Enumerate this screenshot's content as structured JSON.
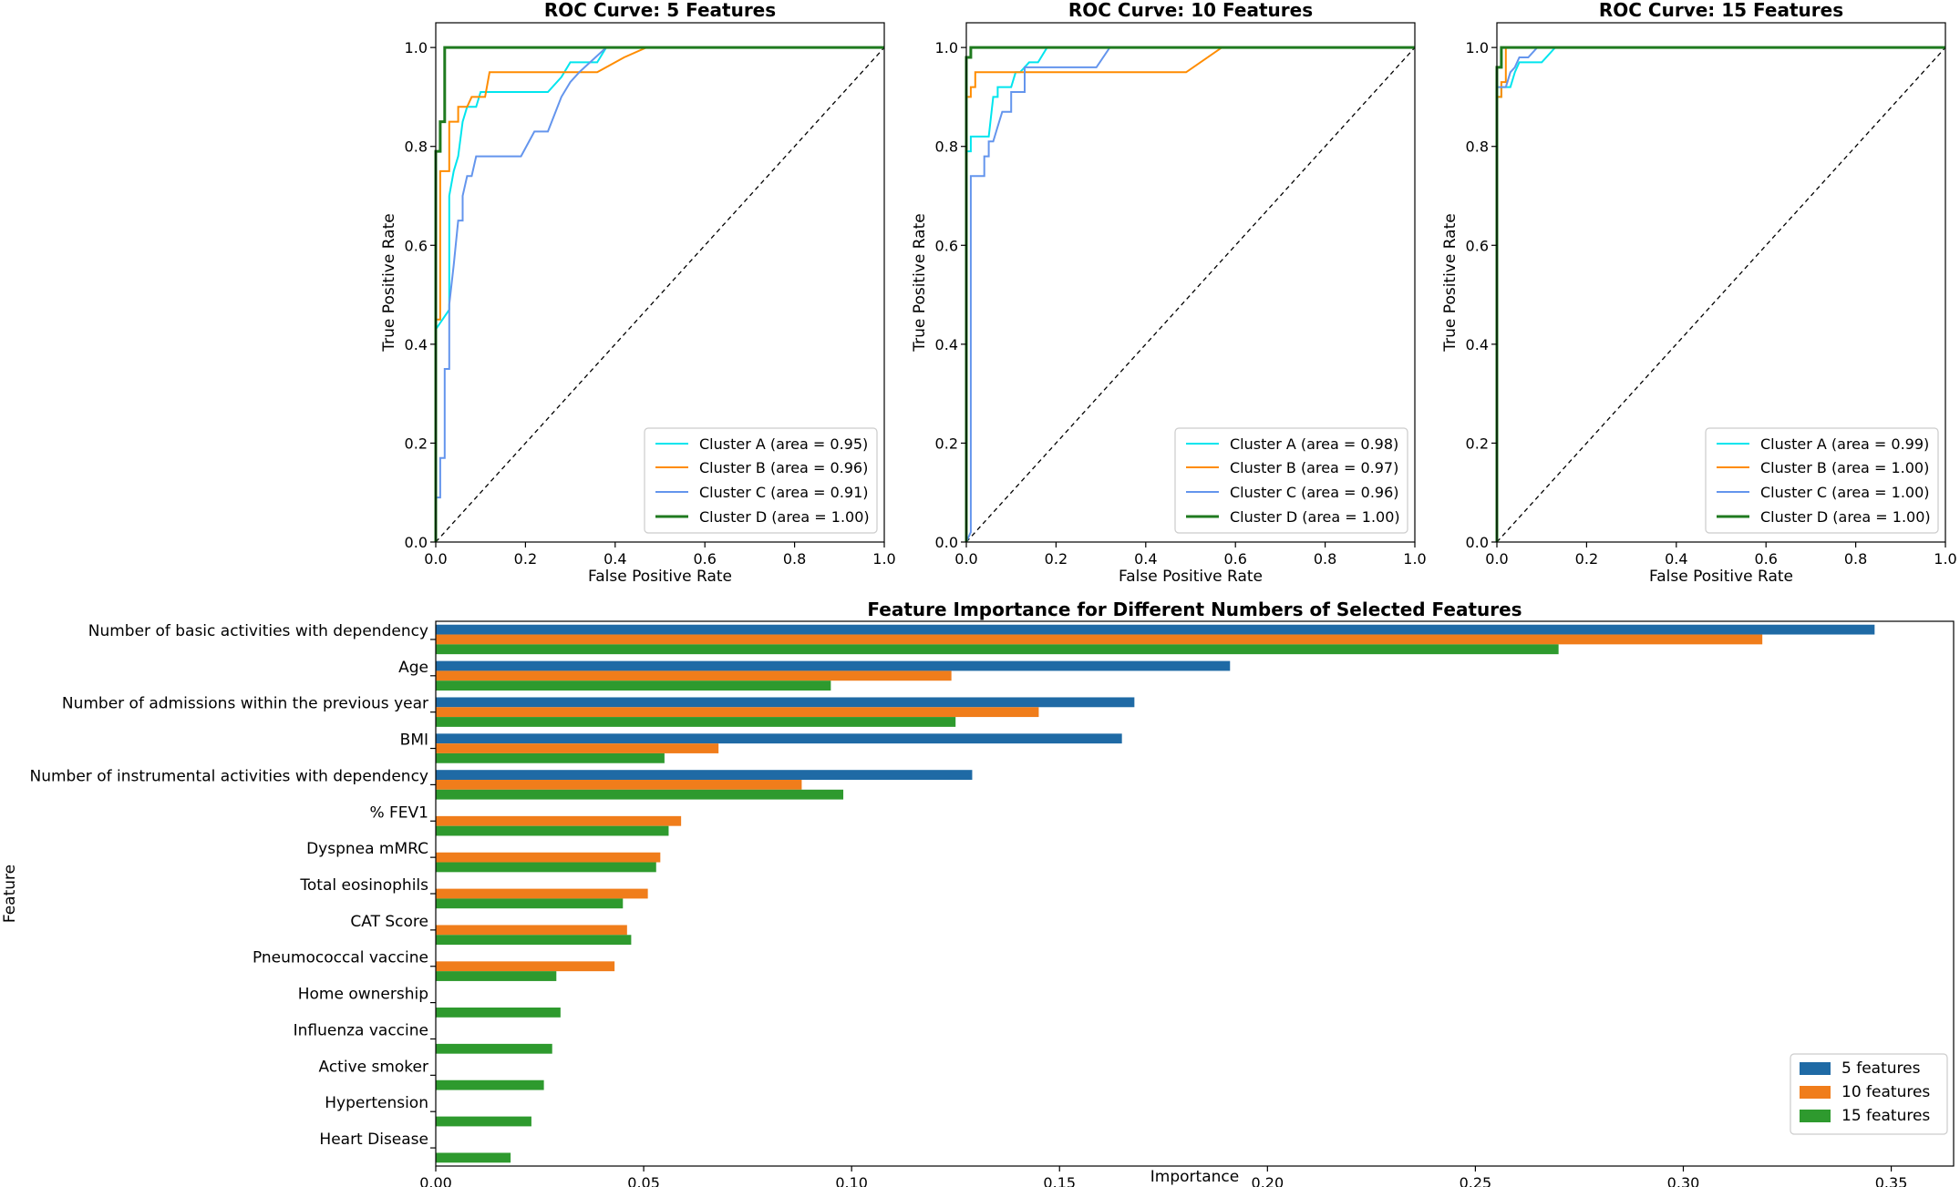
{
  "chart_data": [
    {
      "type": "line",
      "title": "ROC Curve: 5 Features",
      "xlabel": "False Positive Rate",
      "ylabel": "True Positive Rate",
      "xlim": [
        0,
        1
      ],
      "ylim": [
        0,
        1.05
      ],
      "xticks": [
        "0.0",
        "0.2",
        "0.4",
        "0.6",
        "0.8",
        "1.0"
      ],
      "yticks": [
        "0.0",
        "0.2",
        "0.4",
        "0.6",
        "0.8",
        "1.0"
      ],
      "legend_position": "lower-right",
      "grid": false,
      "series": [
        {
          "name": "Cluster A (area = 0.95)",
          "color": "#00e5ee",
          "x": [
            0,
            0,
            0.03,
            0.03,
            0.04,
            0.05,
            0.06,
            0.07,
            0.09,
            0.1,
            0.12,
            0.25,
            0.28,
            0.3,
            0.36,
            0.38,
            1
          ],
          "y": [
            0.4,
            0.43,
            0.47,
            0.7,
            0.75,
            0.78,
            0.85,
            0.88,
            0.88,
            0.91,
            0.91,
            0.91,
            0.94,
            0.97,
            0.97,
            1.0,
            1.0
          ]
        },
        {
          "name": "Cluster B (area = 0.96)",
          "color": "#ff8c00",
          "x": [
            0,
            0,
            0.01,
            0.01,
            0.03,
            0.03,
            0.05,
            0.05,
            0.07,
            0.08,
            0.11,
            0.12,
            0.27,
            0.36,
            0.42,
            0.47,
            1
          ],
          "y": [
            0.0,
            0.45,
            0.45,
            0.75,
            0.75,
            0.85,
            0.85,
            0.88,
            0.88,
            0.9,
            0.9,
            0.95,
            0.95,
            0.95,
            0.98,
            1.0,
            1.0
          ]
        },
        {
          "name": "Cluster C (area = 0.91)",
          "color": "#6495ed",
          "x": [
            0,
            0.01,
            0.01,
            0.02,
            0.02,
            0.03,
            0.03,
            0.04,
            0.05,
            0.06,
            0.06,
            0.07,
            0.08,
            0.09,
            0.1,
            0.19,
            0.22,
            0.25,
            0.28,
            0.3,
            0.32,
            0.38,
            0.4,
            1
          ],
          "y": [
            0.09,
            0.09,
            0.17,
            0.17,
            0.35,
            0.35,
            0.48,
            0.56,
            0.65,
            0.65,
            0.7,
            0.74,
            0.74,
            0.78,
            0.78,
            0.78,
            0.83,
            0.83,
            0.9,
            0.93,
            0.95,
            1.0,
            1.0,
            1.0
          ]
        },
        {
          "name": "Cluster D (area = 1.00)",
          "color": "#1f7a1f",
          "x": [
            0,
            0,
            0.01,
            0.01,
            0.02,
            0.02,
            1
          ],
          "y": [
            0.0,
            0.79,
            0.79,
            0.85,
            0.85,
            1.0,
            1.0
          ]
        }
      ]
    },
    {
      "type": "line",
      "title": "ROC Curve: 10 Features",
      "xlabel": "False Positive Rate",
      "ylabel": "True Positive Rate",
      "xlim": [
        0,
        1
      ],
      "ylim": [
        0,
        1.05
      ],
      "xticks": [
        "0.0",
        "0.2",
        "0.4",
        "0.6",
        "0.8",
        "1.0"
      ],
      "yticks": [
        "0.0",
        "0.2",
        "0.4",
        "0.6",
        "0.8",
        "1.0"
      ],
      "legend_position": "lower-right",
      "grid": false,
      "series": [
        {
          "name": "Cluster A (area = 0.98)",
          "color": "#00e5ee",
          "x": [
            0,
            0,
            0.01,
            0.01,
            0.05,
            0.06,
            0.07,
            0.07,
            0.1,
            0.11,
            0.12,
            0.14,
            0.16,
            0.18,
            1
          ],
          "y": [
            0.0,
            0.79,
            0.79,
            0.82,
            0.82,
            0.9,
            0.9,
            0.92,
            0.92,
            0.95,
            0.95,
            0.97,
            0.97,
            1.0,
            1.0
          ]
        },
        {
          "name": "Cluster B (area = 0.97)",
          "color": "#ff8c00",
          "x": [
            0,
            0,
            0.01,
            0.01,
            0.02,
            0.02,
            0.49,
            0.57,
            1
          ],
          "y": [
            0.0,
            0.9,
            0.9,
            0.92,
            0.92,
            0.95,
            0.95,
            1.0,
            1.0
          ]
        },
        {
          "name": "Cluster C (area = 0.96)",
          "color": "#6495ed",
          "x": [
            0,
            0.01,
            0.01,
            0.04,
            0.04,
            0.05,
            0.05,
            0.06,
            0.07,
            0.08,
            0.09,
            0.1,
            0.1,
            0.13,
            0.13,
            0.29,
            0.32,
            1
          ],
          "y": [
            0.0,
            0.02,
            0.74,
            0.74,
            0.78,
            0.78,
            0.81,
            0.81,
            0.84,
            0.87,
            0.87,
            0.87,
            0.91,
            0.91,
            0.96,
            0.96,
            1.0,
            1.0
          ]
        },
        {
          "name": "Cluster D (area = 1.00)",
          "color": "#1f7a1f",
          "x": [
            0,
            0,
            0.01,
            0.01,
            1
          ],
          "y": [
            0.0,
            0.98,
            0.98,
            1.0,
            1.0
          ]
        }
      ]
    },
    {
      "type": "line",
      "title": "ROC Curve: 15 Features",
      "xlabel": "False Positive Rate",
      "ylabel": "True Positive Rate",
      "xlim": [
        0,
        1
      ],
      "ylim": [
        0,
        1.05
      ],
      "xticks": [
        "0.0",
        "0.2",
        "0.4",
        "0.6",
        "0.8",
        "1.0"
      ],
      "yticks": [
        "0.0",
        "0.2",
        "0.4",
        "0.6",
        "0.8",
        "1.0"
      ],
      "legend_position": "lower-right",
      "grid": false,
      "series": [
        {
          "name": "Cluster A (area = 0.99)",
          "color": "#00e5ee",
          "x": [
            0,
            0,
            0.01,
            0.01,
            0.03,
            0.04,
            0.05,
            0.07,
            0.1,
            0.13,
            1
          ],
          "y": [
            0.0,
            0.9,
            0.9,
            0.92,
            0.92,
            0.95,
            0.97,
            0.97,
            0.97,
            1.0,
            1.0
          ]
        },
        {
          "name": "Cluster B (area = 1.00)",
          "color": "#ff8c00",
          "x": [
            0,
            0,
            0.01,
            0.01,
            0.02,
            0.02,
            1
          ],
          "y": [
            0.0,
            0.9,
            0.9,
            0.93,
            0.93,
            1.0,
            1.0
          ]
        },
        {
          "name": "Cluster C (area = 1.00)",
          "color": "#6495ed",
          "x": [
            0,
            0,
            0.02,
            0.02,
            0.03,
            0.04,
            0.05,
            0.07,
            0.09,
            1
          ],
          "y": [
            0.0,
            0.92,
            0.92,
            0.92,
            0.95,
            0.96,
            0.98,
            0.98,
            1.0,
            1.0
          ]
        },
        {
          "name": "Cluster D (area = 1.00)",
          "color": "#1f7a1f",
          "x": [
            0,
            0,
            0.01,
            0.01,
            1
          ],
          "y": [
            0.0,
            0.96,
            0.96,
            1.0,
            1.0
          ]
        }
      ]
    },
    {
      "type": "bar",
      "orientation": "horizontal",
      "title": "Feature Importance for Different Numbers of Selected Features",
      "xlabel": "Importance",
      "ylabel": "Feature",
      "xlim": [
        0,
        0.365
      ],
      "xticks": [
        "0.00",
        "0.05",
        "0.10",
        "0.15",
        "0.20",
        "0.25",
        "0.30",
        "0.35"
      ],
      "legend_position": "lower-right",
      "grid": false,
      "categories": [
        "Number of basic activities with dependency",
        "Age",
        "Number of admissions within the previous year",
        "BMI",
        "Number of instrumental activities with dependency",
        "% FEV1",
        "Dyspnea mMRC",
        "Total eosinophils",
        "CAT Score",
        "Pneumococcal vaccine",
        "Home ownership",
        "Influenza vaccine",
        "Active smoker",
        "Hypertension",
        "Heart Disease"
      ],
      "series": [
        {
          "name": "5 features",
          "color": "#1f6aa5",
          "values": [
            0.346,
            0.191,
            0.168,
            0.165,
            0.129,
            null,
            null,
            null,
            null,
            null,
            null,
            null,
            null,
            null,
            null
          ]
        },
        {
          "name": "10 features",
          "color": "#f07d1b",
          "values": [
            0.319,
            0.124,
            0.145,
            0.068,
            0.088,
            0.059,
            0.054,
            0.051,
            0.046,
            0.043,
            null,
            null,
            null,
            null,
            null
          ]
        },
        {
          "name": "15 features",
          "color": "#2e9a2e",
          "values": [
            0.27,
            0.095,
            0.125,
            0.055,
            0.098,
            0.056,
            0.053,
            0.045,
            0.047,
            0.029,
            0.03,
            0.028,
            0.026,
            0.023,
            0.018
          ]
        }
      ]
    }
  ]
}
